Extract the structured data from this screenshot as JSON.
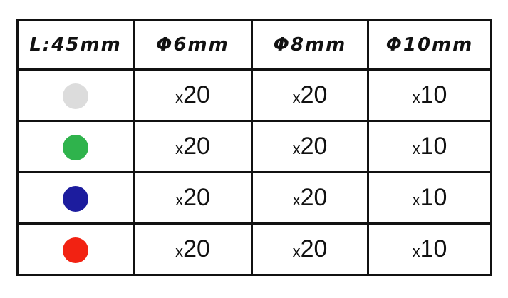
{
  "header": [
    "L:45mm",
    "Φ6mm",
    "Φ8mm",
    "Φ10mm"
  ],
  "rows": [
    {
      "color": "#dcdcdc",
      "color_name": "light-gray",
      "counts": [
        "20",
        "20",
        "10"
      ]
    },
    {
      "color": "#2fb34c",
      "color_name": "green",
      "counts": [
        "20",
        "20",
        "10"
      ]
    },
    {
      "color": "#1c1c9e",
      "color_name": "blue",
      "counts": [
        "20",
        "20",
        "10"
      ]
    },
    {
      "color": "#f22212",
      "color_name": "red",
      "counts": [
        "20",
        "20",
        "10"
      ]
    }
  ],
  "multiplier": "x"
}
